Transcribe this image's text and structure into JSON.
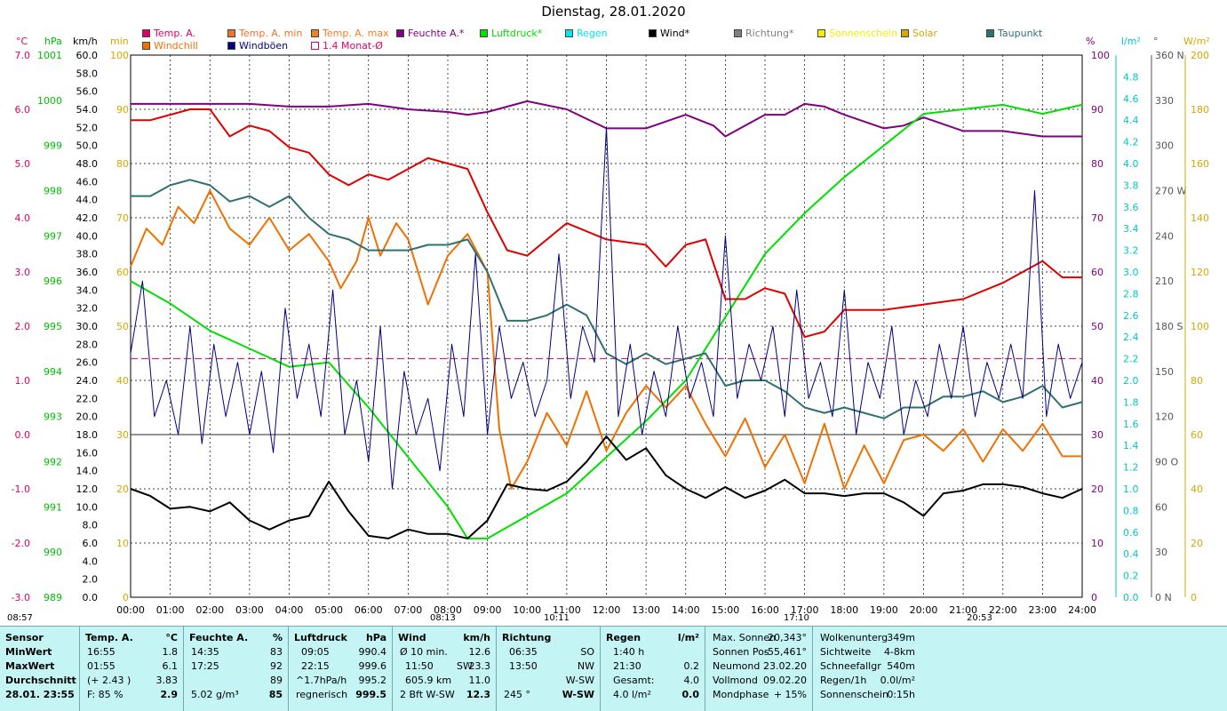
{
  "title": "Dienstag, 28.01.2020",
  "legend": [
    {
      "label": "Temp. A.",
      "color": "#e0006a"
    },
    {
      "label": "Temp. A. min",
      "color": "#f07030"
    },
    {
      "label": "Temp. A. max",
      "color": "#f08020"
    },
    {
      "label": "Feuchte A.*",
      "color": "#800080"
    },
    {
      "label": "Luftdruck*",
      "color": "#00e000"
    },
    {
      "label": "Regen",
      "color": "#00e8e8"
    },
    {
      "label": "Wind*",
      "color": "#000000"
    },
    {
      "label": "Richtung*",
      "color": "#808080"
    },
    {
      "label": "Sonnenschein",
      "color": "#f0f000"
    },
    {
      "label": "Solar",
      "color": "#d4a800"
    },
    {
      "label": "Taupunkt",
      "color": "#307070"
    },
    {
      "label": "Windchill",
      "color": "#f07000"
    },
    {
      "label": "Windböen",
      "color": "#000080"
    },
    {
      "label": "1.4 Monat-Ø",
      "color": "#ffffff"
    }
  ],
  "axis_units": {
    "temp": "°C",
    "pressure": "hPa",
    "wind": "km/h",
    "sun_min": "min",
    "humidity": "%",
    "rain": "l/m²",
    "direction": "°",
    "solar": "W/m²"
  },
  "sunrise": "08:13",
  "sunset": "17:10",
  "moonrise": "10:11",
  "moonset": "20:53",
  "left_marker": "08:57",
  "chart_data": {
    "type": "line",
    "title": "Dienstag, 28.01.2020",
    "x_ticks": [
      "00:00",
      "01:00",
      "02:00",
      "03:00",
      "04:00",
      "05:00",
      "06:00",
      "07:00",
      "08:00",
      "09:00",
      "10:00",
      "11:00",
      "12:00",
      "13:00",
      "14:00",
      "15:00",
      "16:00",
      "17:00",
      "18:00",
      "19:00",
      "20:00",
      "21:00",
      "22:00",
      "23:00",
      "24:00"
    ],
    "xlim": [
      0,
      24
    ],
    "axes": {
      "temp": {
        "unit": "°C",
        "ylim": [
          -3.0,
          7.0
        ],
        "ticks": [
          "7.0",
          "6.0",
          "5.0",
          "4.0",
          "3.0",
          "2.0",
          "1.0",
          "0.0",
          "-1.0",
          "-2.0",
          "-3.0"
        ]
      },
      "pressure": {
        "unit": "hPa",
        "ylim": [
          989,
          1001
        ],
        "ticks": [
          "1001",
          "1000",
          "999",
          "998",
          "997",
          "996",
          "995",
          "994",
          "993",
          "992",
          "991",
          "990",
          "989"
        ]
      },
      "wind": {
        "unit": "km/h",
        "ylim": [
          0,
          60
        ],
        "ticks": [
          "60.0",
          "58.0",
          "56.0",
          "54.0",
          "52.0",
          "50.0",
          "48.0",
          "46.0",
          "44.0",
          "42.0",
          "40.0",
          "38.0",
          "36.0",
          "34.0",
          "32.0",
          "30.0",
          "28.0",
          "26.0",
          "24.0",
          "22.0",
          "20.0",
          "18.0",
          "16.0",
          "14.0",
          "12.0",
          "10.0",
          "8.0",
          "6.0",
          "4.0",
          "2.0",
          "0.0"
        ]
      },
      "sun_min": {
        "unit": "min",
        "ylim": [
          0,
          100
        ],
        "ticks": [
          "100",
          "90",
          "80",
          "70",
          "60",
          "50",
          "40",
          "30",
          "20",
          "10",
          "0"
        ]
      },
      "humidity": {
        "unit": "%",
        "ylim": [
          0,
          100
        ],
        "ticks": [
          "100",
          "90",
          "80",
          "70",
          "60",
          "50",
          "40",
          "30",
          "20",
          "10",
          "0"
        ]
      },
      "rain": {
        "unit": "l/m²",
        "ylim": [
          0,
          5.0
        ],
        "ticks": [
          "4.8",
          "4.6",
          "4.4",
          "4.2",
          "4.0",
          "3.8",
          "3.6",
          "3.4",
          "3.2",
          "3.0",
          "2.8",
          "2.6",
          "2.4",
          "2.2",
          "2.0",
          "1.8",
          "1.6",
          "1.4",
          "1.2",
          "1.0",
          "0.8",
          "0.6",
          "0.4",
          "0.2",
          "0.0"
        ]
      },
      "direction": {
        "unit": "°",
        "ylim": [
          0,
          360
        ],
        "ticks": [
          "360 N",
          "330",
          "300",
          "270 W",
          "240",
          "210",
          "180 S",
          "150",
          "120",
          "90 O",
          "60",
          "30",
          "0 N"
        ]
      },
      "solar": {
        "unit": "W/m²",
        "ylim": [
          0,
          200
        ],
        "ticks": [
          "200",
          "180",
          "160",
          "140",
          "120",
          "100",
          "80",
          "60",
          "40",
          "20",
          "0"
        ]
      }
    },
    "monthly_avg_temp": 1.4,
    "series": [
      {
        "name": "Feuchte A.*",
        "axis": "humidity",
        "color": "#800080",
        "x": [
          0,
          1,
          2,
          3,
          4,
          5,
          6,
          7,
          8,
          8.5,
          9,
          10,
          11,
          12,
          12.5,
          13,
          14,
          14.7,
          15,
          16,
          16.5,
          17,
          17.5,
          18,
          19,
          19.5,
          20,
          21,
          22,
          23,
          24
        ],
        "y": [
          91,
          91,
          91,
          91,
          90.5,
          90.5,
          91,
          90,
          89.5,
          89,
          89.5,
          91.5,
          90,
          86.5,
          86.5,
          86.5,
          89,
          87,
          85,
          89,
          89,
          91,
          90.5,
          89,
          86.5,
          87,
          88.5,
          86,
          86,
          85,
          85
        ]
      },
      {
        "name": "Luftdruck*",
        "axis": "pressure",
        "color": "#00e000",
        "x": [
          0,
          1,
          2,
          3,
          4,
          5,
          6,
          7,
          8,
          8.5,
          9,
          10,
          11,
          12,
          13,
          14,
          15,
          16,
          17,
          18,
          19,
          20,
          21,
          22,
          23,
          24
        ],
        "y": [
          996.0,
          995.5,
          994.9,
          994.5,
          994.1,
          994.2,
          993.2,
          992.1,
          991.0,
          990.3,
          990.3,
          990.8,
          991.3,
          992.1,
          992.9,
          993.8,
          995.2,
          996.6,
          997.5,
          998.3,
          999.0,
          999.7,
          999.8,
          999.9,
          999.7,
          999.9
        ]
      },
      {
        "name": "Temp. A.",
        "axis": "temp",
        "color": "#e00000",
        "x": [
          0,
          0.5,
          1,
          1.5,
          2,
          2.5,
          3,
          3.5,
          4,
          4.5,
          5,
          5.5,
          6,
          6.5,
          7,
          7.5,
          8,
          8.5,
          9,
          9.5,
          10,
          11,
          12,
          13,
          13.5,
          14,
          14.5,
          15,
          15.5,
          16,
          16.5,
          17,
          17.5,
          18,
          19,
          20,
          21,
          22,
          23,
          23.5,
          24
        ],
        "y": [
          5.8,
          5.8,
          5.9,
          6.0,
          6.0,
          5.5,
          5.7,
          5.6,
          5.3,
          5.2,
          4.8,
          4.6,
          4.8,
          4.7,
          4.9,
          5.1,
          5.0,
          4.9,
          4.1,
          3.4,
          3.3,
          3.9,
          3.6,
          3.5,
          3.1,
          3.5,
          3.6,
          2.5,
          2.5,
          2.7,
          2.6,
          1.8,
          1.9,
          2.3,
          2.3,
          2.4,
          2.5,
          2.8,
          3.2,
          2.9,
          2.9
        ]
      },
      {
        "name": "Windchill",
        "axis": "temp",
        "color": "#f07000",
        "x": [
          0,
          0.4,
          0.8,
          1.2,
          1.6,
          2,
          2.5,
          3,
          3.5,
          4,
          4.5,
          5,
          5.3,
          5.7,
          6,
          6.3,
          6.7,
          7,
          7.5,
          8,
          8.5,
          9,
          9.3,
          9.6,
          10,
          10.5,
          11,
          11.5,
          12,
          12.5,
          13,
          13.5,
          14,
          14.5,
          15,
          15.5,
          16,
          16.5,
          17,
          17.5,
          18,
          18.5,
          19,
          19.5,
          20,
          20.5,
          21,
          21.5,
          22,
          22.5,
          23,
          23.5,
          24
        ],
        "y": [
          3.1,
          3.8,
          3.5,
          4.2,
          3.9,
          4.5,
          3.8,
          3.5,
          4.0,
          3.4,
          3.7,
          3.2,
          2.7,
          3.2,
          4.0,
          3.3,
          3.9,
          3.6,
          2.4,
          3.3,
          3.7,
          3.0,
          0.1,
          -1.0,
          -0.5,
          0.4,
          -0.2,
          0.8,
          -0.3,
          0.4,
          0.9,
          0.5,
          0.9,
          0.2,
          -0.4,
          0.3,
          -0.6,
          0.0,
          -0.9,
          0.2,
          -1.0,
          -0.2,
          -0.9,
          -0.1,
          0.0,
          -0.3,
          0.1,
          -0.5,
          0.1,
          -0.3,
          0.2,
          -0.4,
          -0.4
        ]
      },
      {
        "name": "Taupunkt",
        "axis": "temp",
        "color": "#307070",
        "x": [
          0,
          0.5,
          1,
          1.5,
          2,
          2.5,
          3,
          3.5,
          4,
          4.5,
          5,
          5.5,
          6,
          6.5,
          7,
          7.5,
          8,
          8.5,
          9,
          9.5,
          10,
          10.5,
          11,
          11.5,
          12,
          12.5,
          13,
          13.5,
          14,
          14.5,
          15,
          15.5,
          16,
          16.5,
          17,
          17.5,
          18,
          18.5,
          19,
          19.5,
          20,
          20.5,
          21,
          21.5,
          22,
          22.5,
          23,
          23.5,
          24
        ],
        "y": [
          4.4,
          4.4,
          4.6,
          4.7,
          4.6,
          4.3,
          4.4,
          4.2,
          4.4,
          4.0,
          3.7,
          3.6,
          3.4,
          3.4,
          3.4,
          3.5,
          3.5,
          3.6,
          3.0,
          2.1,
          2.1,
          2.2,
          2.4,
          2.2,
          1.5,
          1.3,
          1.5,
          1.3,
          1.4,
          1.5,
          0.9,
          1.0,
          1.0,
          0.8,
          0.5,
          0.4,
          0.5,
          0.4,
          0.3,
          0.5,
          0.5,
          0.7,
          0.7,
          0.8,
          0.6,
          0.7,
          0.9,
          0.5,
          0.6
        ]
      },
      {
        "name": "Wind*",
        "axis": "wind",
        "color": "#000000",
        "x": [
          0,
          0.5,
          1,
          1.5,
          2,
          2.5,
          3,
          3.5,
          4,
          4.5,
          5,
          5.5,
          6,
          6.5,
          7,
          7.5,
          8,
          8.5,
          9,
          9.5,
          10,
          10.5,
          11,
          11.5,
          12,
          12.5,
          13,
          13.5,
          14,
          14.5,
          15,
          15.5,
          16,
          16.5,
          17,
          17.5,
          18,
          18.5,
          19,
          19.5,
          20,
          20.5,
          21,
          21.5,
          22,
          22.5,
          23,
          23.5,
          24
        ],
        "y": [
          12.0,
          11.2,
          9.8,
          10.0,
          9.5,
          10.5,
          8.5,
          7.5,
          8.5,
          9.0,
          12.8,
          9.5,
          6.8,
          6.5,
          7.5,
          7.0,
          7.0,
          6.5,
          8.5,
          12.5,
          12.0,
          11.8,
          12.8,
          15.0,
          17.8,
          15.2,
          16.5,
          13.5,
          12.0,
          11.0,
          12.2,
          11.0,
          11.8,
          13.0,
          11.5,
          11.5,
          11.2,
          11.5,
          11.5,
          10.5,
          9.0,
          11.5,
          11.8,
          12.5,
          12.5,
          12.2,
          11.5,
          11.0,
          12.0
        ]
      },
      {
        "name": "Windböen",
        "axis": "wind",
        "color": "#000080",
        "x": [
          0,
          0.3,
          0.6,
          0.9,
          1.2,
          1.5,
          1.8,
          2.1,
          2.4,
          2.7,
          3,
          3.3,
          3.6,
          3.9,
          4.2,
          4.5,
          4.8,
          5.1,
          5.4,
          5.7,
          6,
          6.3,
          6.6,
          6.9,
          7.2,
          7.5,
          7.8,
          8.1,
          8.4,
          8.7,
          9,
          9.3,
          9.6,
          9.9,
          10.2,
          10.5,
          10.8,
          11.1,
          11.4,
          11.7,
          12,
          12.3,
          12.6,
          12.9,
          13.2,
          13.5,
          13.8,
          14.1,
          14.4,
          14.7,
          15,
          15.3,
          15.6,
          15.9,
          16.2,
          16.5,
          16.8,
          17.1,
          17.4,
          17.7,
          18,
          18.3,
          18.6,
          18.9,
          19.2,
          19.5,
          19.8,
          20.1,
          20.4,
          20.7,
          21,
          21.3,
          21.6,
          21.9,
          22.2,
          22.5,
          22.8,
          23.1,
          23.4,
          23.7,
          24
        ],
        "y": [
          27,
          35,
          20,
          24,
          18,
          30,
          17,
          28,
          20,
          26,
          18,
          25,
          16,
          32,
          22,
          28,
          20,
          34,
          18,
          24,
          15,
          30,
          12,
          25,
          18,
          22,
          14,
          28,
          20,
          38,
          18,
          30,
          22,
          26,
          20,
          24,
          38,
          22,
          30,
          26,
          52,
          20,
          28,
          18,
          25,
          20,
          30,
          22,
          26,
          20,
          40,
          22,
          28,
          24,
          30,
          20,
          34,
          22,
          26,
          20,
          34,
          18,
          26,
          22,
          30,
          18,
          24,
          20,
          28,
          22,
          30,
          20,
          26,
          22,
          28,
          22,
          45,
          20,
          28,
          22,
          26
        ]
      }
    ]
  },
  "summary": {
    "sensor": {
      "header": "Sensor",
      "rows": [
        "MinWert",
        "MaxWert",
        "Durchschnitt",
        "28.01. 23:55"
      ]
    },
    "temp": {
      "header": "Temp. A.",
      "unit": "°C",
      "rows": [
        [
          "16:55",
          "1.8"
        ],
        [
          "01:55",
          "6.1"
        ],
        [
          "(+ 2.43 )",
          "3.83"
        ],
        [
          "F: 85 %",
          "2.9"
        ]
      ]
    },
    "humidity": {
      "header": "Feuchte A.",
      "unit": "%",
      "rows": [
        [
          "14:35",
          "83"
        ],
        [
          "17:25",
          "92"
        ],
        [
          "",
          "89"
        ],
        [
          "5.02 g/m³",
          "85"
        ]
      ]
    },
    "pressure": {
      "header": "Luftdruck",
      "unit": "hPa",
      "rows": [
        [
          "09:05",
          "990.4"
        ],
        [
          "22:15",
          "999.6"
        ],
        [
          "^1.7hPa/h",
          "995.2"
        ],
        [
          "regnerisch",
          "999.5"
        ]
      ]
    },
    "wind": {
      "header": "Wind",
      "unit": "km/h",
      "rows": [
        [
          "Ø 10 min.",
          "",
          "12.6"
        ],
        [
          "11:50",
          "SW",
          "23.3"
        ],
        [
          "605.9 km",
          "",
          "11.0"
        ],
        [
          "2 Bft W-SW",
          "",
          "12.3"
        ]
      ]
    },
    "direction": {
      "header": "Richtung",
      "rows": [
        [
          "06:35",
          "SO"
        ],
        [
          "13:50",
          "NW"
        ],
        [
          "",
          "W-SW"
        ],
        [
          "245 °",
          "W-SW"
        ]
      ]
    },
    "rain": {
      "header": "Regen",
      "unit": "l/m²",
      "rows": [
        [
          "1:40 h",
          ""
        ],
        [
          "21:30",
          "0.2"
        ],
        [
          "Gesamt:",
          "4.0"
        ],
        [
          "4.0 l/m²",
          "0.0"
        ]
      ]
    },
    "sun": {
      "rows": [
        [
          "Max. Sonnen",
          "20,343°"
        ],
        [
          "Sonnen Pos",
          "-55,461°"
        ],
        [
          "Neumond",
          "23.02.20"
        ],
        [
          "Vollmond",
          "09.02.20"
        ],
        [
          "Mondphase",
          "+ 15%"
        ]
      ]
    },
    "misc": {
      "rows": [
        [
          "Wolkenunterg",
          "349m"
        ],
        [
          "Sichtweite",
          "4-8km"
        ],
        [
          "Schneefallgr",
          "540m"
        ],
        [
          "Regen/1h",
          "0.0l/m²"
        ],
        [
          "Sonnenschein",
          "0:15h"
        ]
      ]
    }
  }
}
